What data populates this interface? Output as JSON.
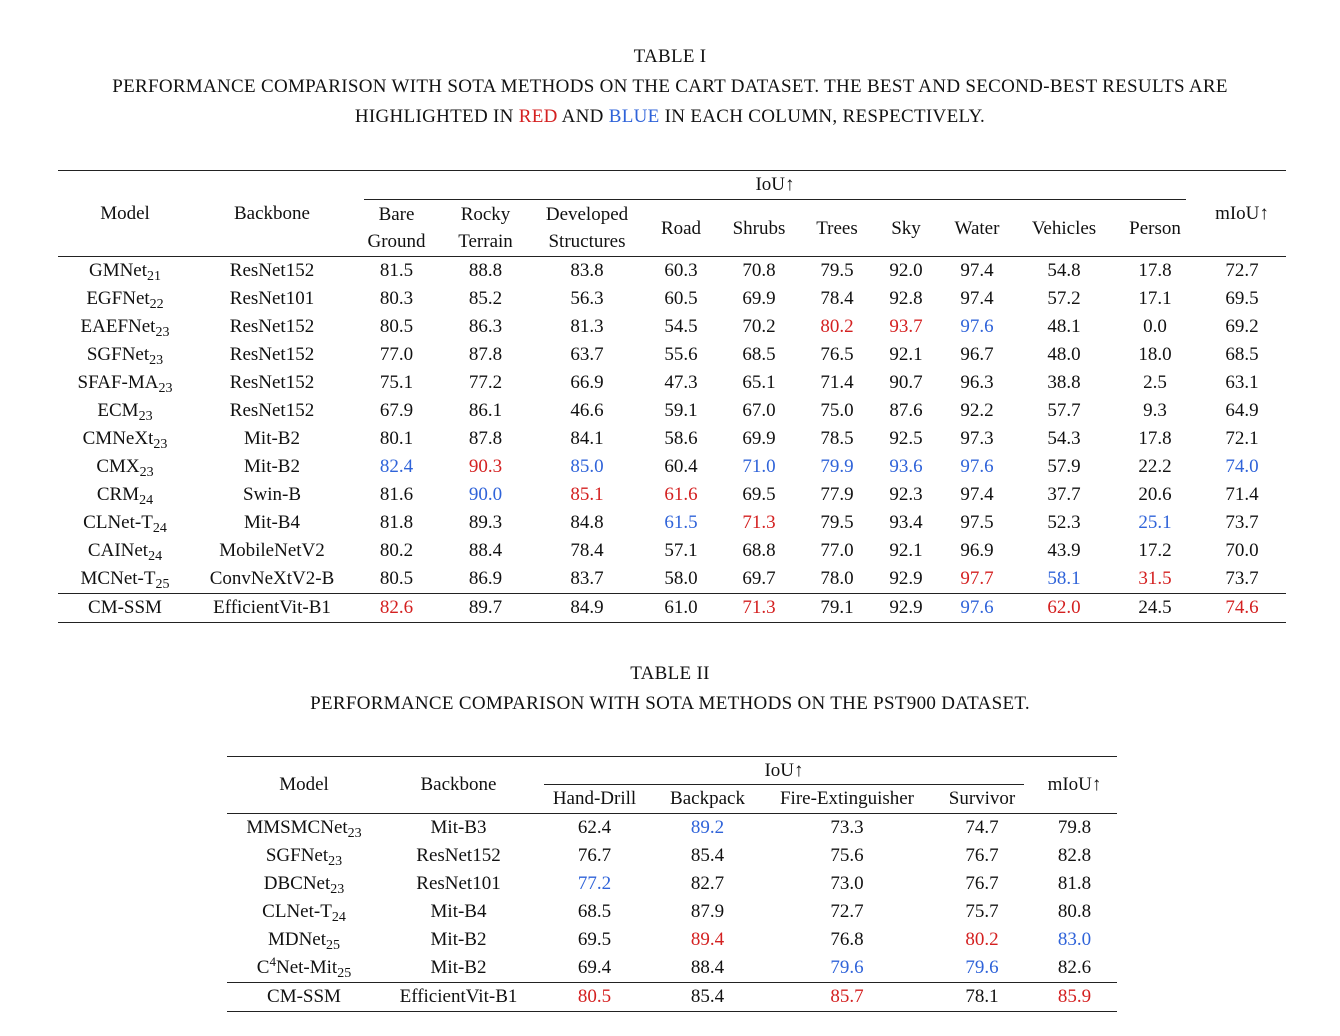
{
  "table1": {
    "label": "TABLE I",
    "caption_line1": "PERFORMANCE COMPARISON WITH SOTA METHODS ON THE CART DATASET. THE BEST AND SECOND-BEST RESULTS ARE",
    "caption_line2_pre": "HIGHLIGHTED IN ",
    "caption_red": "RED",
    "caption_mid": " AND ",
    "caption_blue": "BLUE",
    "caption_line2_post": " IN EACH COLUMN, RESPECTIVELY.",
    "header_model": "Model",
    "header_backbone": "Backbone",
    "header_iou": "IoU↑",
    "header_miou": "mIoU↑",
    "columns": [
      [
        "Bare",
        "Ground"
      ],
      [
        "Rocky",
        "Terrain"
      ],
      [
        "Developed",
        "Structures"
      ],
      [
        "Road"
      ],
      [
        "Shrubs"
      ],
      [
        "Trees"
      ],
      [
        "Sky"
      ],
      [
        "Water"
      ],
      [
        "Vehicles"
      ],
      [
        "Person"
      ]
    ],
    "rows": [
      {
        "model": "GMNet",
        "sub": "21",
        "backbone": "ResNet152",
        "values": [
          "81.5",
          "88.8",
          "83.8",
          "60.3",
          "70.8",
          "79.5",
          "92.0",
          "97.4",
          "54.8",
          "17.8",
          "72.7"
        ],
        "colors": [
          "",
          "",
          "",
          "",
          "",
          "",
          "",
          "",
          "",
          "",
          ""
        ]
      },
      {
        "model": "EGFNet",
        "sub": "22",
        "backbone": "ResNet101",
        "values": [
          "80.3",
          "85.2",
          "56.3",
          "60.5",
          "69.9",
          "78.4",
          "92.8",
          "97.4",
          "57.2",
          "17.1",
          "69.5"
        ],
        "colors": [
          "",
          "",
          "",
          "",
          "",
          "",
          "",
          "",
          "",
          "",
          ""
        ]
      },
      {
        "model": "EAEFNet",
        "sub": "23",
        "backbone": "ResNet152",
        "values": [
          "80.5",
          "86.3",
          "81.3",
          "54.5",
          "70.2",
          "80.2",
          "93.7",
          "97.6",
          "48.1",
          "0.0",
          "69.2"
        ],
        "colors": [
          "",
          "",
          "",
          "",
          "",
          "red",
          "red",
          "blue",
          "",
          "",
          ""
        ]
      },
      {
        "model": "SGFNet",
        "sub": "23",
        "backbone": "ResNet152",
        "values": [
          "77.0",
          "87.8",
          "63.7",
          "55.6",
          "68.5",
          "76.5",
          "92.1",
          "96.7",
          "48.0",
          "18.0",
          "68.5"
        ],
        "colors": [
          "",
          "",
          "",
          "",
          "",
          "",
          "",
          "",
          "",
          "",
          ""
        ]
      },
      {
        "model": "SFAF-MA",
        "sub": "23",
        "backbone": "ResNet152",
        "values": [
          "75.1",
          "77.2",
          "66.9",
          "47.3",
          "65.1",
          "71.4",
          "90.7",
          "96.3",
          "38.8",
          "2.5",
          "63.1"
        ],
        "colors": [
          "",
          "",
          "",
          "",
          "",
          "",
          "",
          "",
          "",
          "",
          ""
        ]
      },
      {
        "model": "ECM",
        "sub": "23",
        "backbone": "ResNet152",
        "values": [
          "67.9",
          "86.1",
          "46.6",
          "59.1",
          "67.0",
          "75.0",
          "87.6",
          "92.2",
          "57.7",
          "9.3",
          "64.9"
        ],
        "colors": [
          "",
          "",
          "",
          "",
          "",
          "",
          "",
          "",
          "",
          "",
          ""
        ]
      },
      {
        "model": "CMNeXt",
        "sub": "23",
        "backbone": "Mit-B2",
        "values": [
          "80.1",
          "87.8",
          "84.1",
          "58.6",
          "69.9",
          "78.5",
          "92.5",
          "97.3",
          "54.3",
          "17.8",
          "72.1"
        ],
        "colors": [
          "",
          "",
          "",
          "",
          "",
          "",
          "",
          "",
          "",
          "",
          ""
        ]
      },
      {
        "model": "CMX",
        "sub": "23",
        "backbone": "Mit-B2",
        "values": [
          "82.4",
          "90.3",
          "85.0",
          "60.4",
          "71.0",
          "79.9",
          "93.6",
          "97.6",
          "57.9",
          "22.2",
          "74.0"
        ],
        "colors": [
          "blue",
          "red",
          "blue",
          "",
          "blue",
          "blue",
          "blue",
          "blue",
          "",
          "",
          "blue"
        ]
      },
      {
        "model": "CRM",
        "sub": "24",
        "backbone": "Swin-B",
        "values": [
          "81.6",
          "90.0",
          "85.1",
          "61.6",
          "69.5",
          "77.9",
          "92.3",
          "97.4",
          "37.7",
          "20.6",
          "71.4"
        ],
        "colors": [
          "",
          "blue",
          "red",
          "red",
          "",
          "",
          "",
          "",
          "",
          "",
          ""
        ]
      },
      {
        "model": "CLNet-T",
        "sub": "24",
        "backbone": "Mit-B4",
        "values": [
          "81.8",
          "89.3",
          "84.8",
          "61.5",
          "71.3",
          "79.5",
          "93.4",
          "97.5",
          "52.3",
          "25.1",
          "73.7"
        ],
        "colors": [
          "",
          "",
          "",
          "blue",
          "red",
          "",
          "",
          "",
          "",
          "blue",
          ""
        ]
      },
      {
        "model": "CAINet",
        "sub": "24",
        "backbone": "MobileNetV2",
        "values": [
          "80.2",
          "88.4",
          "78.4",
          "57.1",
          "68.8",
          "77.0",
          "92.1",
          "96.9",
          "43.9",
          "17.2",
          "70.0"
        ],
        "colors": [
          "",
          "",
          "",
          "",
          "",
          "",
          "",
          "",
          "",
          "",
          ""
        ]
      },
      {
        "model": "MCNet-T",
        "sub": "25",
        "backbone": "ConvNeXtV2-B",
        "values": [
          "80.5",
          "86.9",
          "83.7",
          "58.0",
          "69.7",
          "78.0",
          "92.9",
          "97.7",
          "58.1",
          "31.5",
          "73.7"
        ],
        "colors": [
          "",
          "",
          "",
          "",
          "",
          "",
          "",
          "red",
          "blue",
          "red",
          ""
        ]
      }
    ],
    "ours": {
      "model": "CM-SSM",
      "backbone": "EfficientVit-B1",
      "values": [
        "82.6",
        "89.7",
        "84.9",
        "61.0",
        "71.3",
        "79.1",
        "92.9",
        "97.6",
        "62.0",
        "24.5",
        "74.6"
      ],
      "colors": [
        "red",
        "",
        "",
        "",
        "red",
        "",
        "",
        "blue",
        "red",
        "",
        "red"
      ]
    }
  },
  "table2": {
    "label": "TABLE II",
    "caption": "PERFORMANCE COMPARISON WITH SOTA METHODS ON THE PST900 DATASET.",
    "header_model": "Model",
    "header_backbone": "Backbone",
    "header_iou": "IoU↑",
    "header_miou": "mIoU↑",
    "columns": [
      "Hand-Drill",
      "Backpack",
      "Fire-Extinguisher",
      "Survivor"
    ],
    "rows": [
      {
        "model": "MMSMCNet",
        "sup": "",
        "sub": "23",
        "backbone": "Mit-B3",
        "values": [
          "62.4",
          "89.2",
          "73.3",
          "74.7",
          "79.8"
        ],
        "colors": [
          "",
          "blue",
          "",
          "",
          ""
        ]
      },
      {
        "model": "SGFNet",
        "sup": "",
        "sub": "23",
        "backbone": "ResNet152",
        "values": [
          "76.7",
          "85.4",
          "75.6",
          "76.7",
          "82.8"
        ],
        "colors": [
          "",
          "",
          "",
          "",
          ""
        ]
      },
      {
        "model": "DBCNet",
        "sup": "",
        "sub": "23",
        "backbone": "ResNet101",
        "values": [
          "77.2",
          "82.7",
          "73.0",
          "76.7",
          "81.8"
        ],
        "colors": [
          "blue",
          "",
          "",
          "",
          ""
        ]
      },
      {
        "model": "CLNet-T",
        "sup": "",
        "sub": "24",
        "backbone": "Mit-B4",
        "values": [
          "68.5",
          "87.9",
          "72.7",
          "75.7",
          "80.8"
        ],
        "colors": [
          "",
          "",
          "",
          "",
          ""
        ]
      },
      {
        "model": "MDNet",
        "sup": "",
        "sub": "25",
        "backbone": "Mit-B2",
        "values": [
          "69.5",
          "89.4",
          "76.8",
          "80.2",
          "83.0"
        ],
        "colors": [
          "",
          "red",
          "",
          "red",
          "blue"
        ]
      },
      {
        "model": "Net-Mit",
        "pre": "C",
        "sup": "4",
        "sub": "25",
        "backbone": "Mit-B2",
        "values": [
          "69.4",
          "88.4",
          "79.6",
          "79.6",
          "82.6"
        ],
        "colors": [
          "",
          "",
          "blue",
          "blue",
          ""
        ]
      }
    ],
    "ours": {
      "model": "CM-SSM",
      "backbone": "EfficientVit-B1",
      "values": [
        "80.5",
        "85.4",
        "85.7",
        "78.1",
        "85.9"
      ],
      "colors": [
        "red",
        "",
        "red",
        "",
        "red"
      ]
    }
  }
}
